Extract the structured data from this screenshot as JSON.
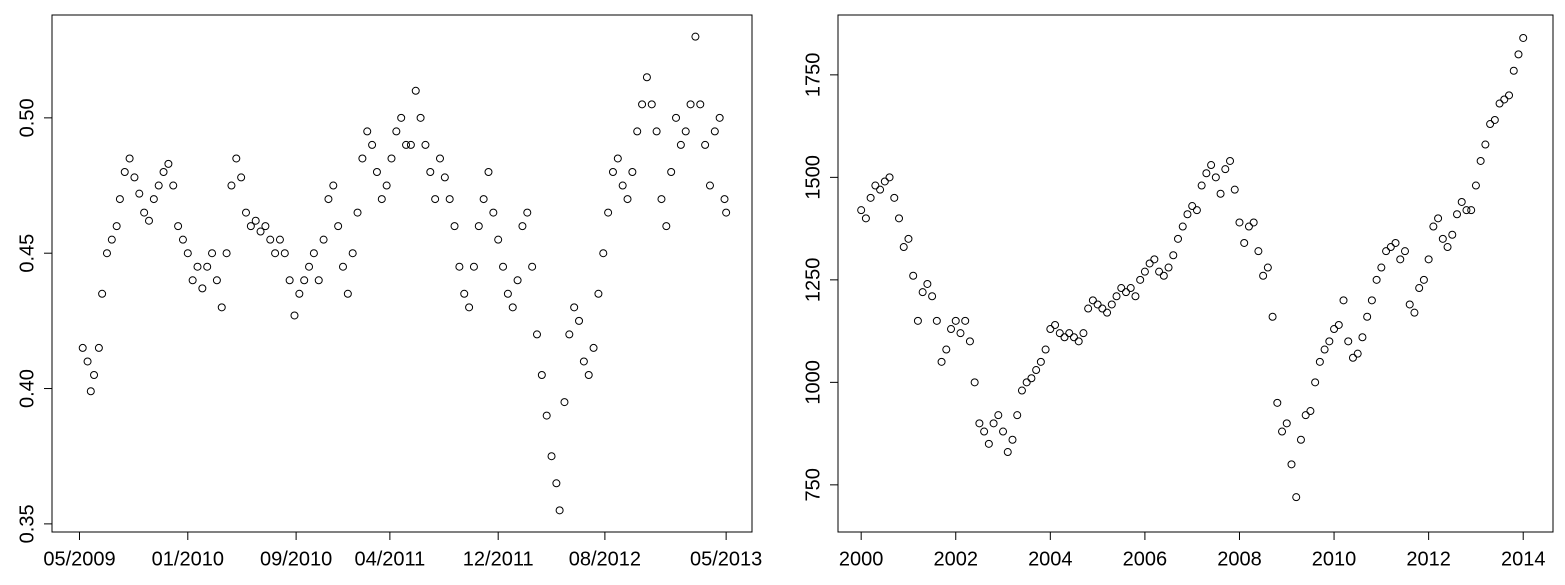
{
  "chart_data": [
    {
      "type": "scatter",
      "color": "#000000",
      "xlim": [
        2009.16,
        2013.49
      ],
      "ylim": [
        0.347,
        0.538
      ],
      "xticks": [
        {
          "value": 2009.33,
          "label": "05/2009"
        },
        {
          "value": 2010.0,
          "label": "01/2010"
        },
        {
          "value": 2010.67,
          "label": "09/2010"
        },
        {
          "value": 2011.25,
          "label": "04/2011"
        },
        {
          "value": 2011.92,
          "label": "12/2011"
        },
        {
          "value": 2012.58,
          "label": "08/2012"
        },
        {
          "value": 2013.33,
          "label": "05/2013"
        }
      ],
      "yticks": [
        {
          "value": 0.35,
          "label": "0.35"
        },
        {
          "value": 0.4,
          "label": "0.40"
        },
        {
          "value": 0.45,
          "label": "0.45"
        },
        {
          "value": 0.5,
          "label": "0.50"
        }
      ],
      "x": [
        2009.35,
        2009.38,
        2009.4,
        2009.42,
        2009.45,
        2009.47,
        2009.5,
        2009.53,
        2009.56,
        2009.58,
        2009.61,
        2009.64,
        2009.67,
        2009.7,
        2009.73,
        2009.76,
        2009.79,
        2009.82,
        2009.85,
        2009.88,
        2009.91,
        2009.94,
        2009.97,
        2010.0,
        2010.03,
        2010.06,
        2010.09,
        2010.12,
        2010.15,
        2010.18,
        2010.21,
        2010.24,
        2010.27,
        2010.3,
        2010.33,
        2010.36,
        2010.39,
        2010.42,
        2010.45,
        2010.48,
        2010.51,
        2010.54,
        2010.57,
        2010.6,
        2010.63,
        2010.66,
        2010.69,
        2010.72,
        2010.75,
        2010.78,
        2010.81,
        2010.84,
        2010.87,
        2010.9,
        2010.93,
        2010.96,
        2010.99,
        2011.02,
        2011.05,
        2011.08,
        2011.11,
        2011.14,
        2011.17,
        2011.2,
        2011.23,
        2011.26,
        2011.29,
        2011.32,
        2011.35,
        2011.38,
        2011.41,
        2011.44,
        2011.47,
        2011.5,
        2011.53,
        2011.56,
        2011.59,
        2011.62,
        2011.65,
        2011.68,
        2011.71,
        2011.74,
        2011.77,
        2011.8,
        2011.83,
        2011.86,
        2011.89,
        2011.92,
        2011.95,
        2011.98,
        2012.01,
        2012.04,
        2012.07,
        2012.1,
        2012.13,
        2012.16,
        2012.19,
        2012.22,
        2012.25,
        2012.28,
        2012.3,
        2012.33,
        2012.36,
        2012.39,
        2012.42,
        2012.45,
        2012.48,
        2012.51,
        2012.54,
        2012.57,
        2012.6,
        2012.63,
        2012.66,
        2012.69,
        2012.72,
        2012.75,
        2012.78,
        2012.81,
        2012.84,
        2012.87,
        2012.9,
        2012.93,
        2012.96,
        2012.99,
        2013.02,
        2013.05,
        2013.08,
        2013.11,
        2013.14,
        2013.17,
        2013.2,
        2013.23,
        2013.26,
        2013.29,
        2013.32,
        2013.33
      ],
      "values": [
        0.415,
        0.41,
        0.399,
        0.405,
        0.415,
        0.435,
        0.45,
        0.455,
        0.46,
        0.47,
        0.48,
        0.485,
        0.478,
        0.472,
        0.465,
        0.462,
        0.47,
        0.475,
        0.48,
        0.483,
        0.475,
        0.46,
        0.455,
        0.45,
        0.44,
        0.445,
        0.437,
        0.445,
        0.45,
        0.44,
        0.43,
        0.45,
        0.475,
        0.485,
        0.478,
        0.465,
        0.46,
        0.462,
        0.458,
        0.46,
        0.455,
        0.45,
        0.455,
        0.45,
        0.44,
        0.427,
        0.435,
        0.44,
        0.445,
        0.45,
        0.44,
        0.455,
        0.47,
        0.475,
        0.46,
        0.445,
        0.435,
        0.45,
        0.465,
        0.485,
        0.495,
        0.49,
        0.48,
        0.47,
        0.475,
        0.485,
        0.495,
        0.5,
        0.49,
        0.49,
        0.51,
        0.5,
        0.49,
        0.48,
        0.47,
        0.485,
        0.478,
        0.47,
        0.46,
        0.445,
        0.435,
        0.43,
        0.445,
        0.46,
        0.47,
        0.48,
        0.465,
        0.455,
        0.445,
        0.435,
        0.43,
        0.44,
        0.46,
        0.465,
        0.445,
        0.42,
        0.405,
        0.39,
        0.375,
        0.365,
        0.355,
        0.395,
        0.42,
        0.43,
        0.425,
        0.41,
        0.405,
        0.415,
        0.435,
        0.45,
        0.465,
        0.48,
        0.485,
        0.475,
        0.47,
        0.48,
        0.495,
        0.505,
        0.515,
        0.505,
        0.495,
        0.47,
        0.46,
        0.48,
        0.5,
        0.49,
        0.495,
        0.505,
        0.53,
        0.505,
        0.49,
        0.475,
        0.495,
        0.5,
        0.47,
        0.465
      ]
    },
    {
      "type": "scatter",
      "color": "#000000",
      "xlim": [
        1999.51,
        2014.63
      ],
      "ylim": [
        635,
        1896
      ],
      "xticks": [
        2000,
        2002,
        2004,
        2006,
        2008,
        2010,
        2012,
        2014
      ],
      "yticks": [
        750,
        1000,
        1250,
        1500,
        1750
      ],
      "x": [
        2000.0,
        2000.1,
        2000.2,
        2000.3,
        2000.4,
        2000.5,
        2000.6,
        2000.7,
        2000.8,
        2000.9,
        2001.0,
        2001.1,
        2001.2,
        2001.3,
        2001.4,
        2001.5,
        2001.6,
        2001.7,
        2001.8,
        2001.9,
        2002.0,
        2002.1,
        2002.2,
        2002.3,
        2002.4,
        2002.5,
        2002.6,
        2002.7,
        2002.8,
        2002.9,
        2003.0,
        2003.1,
        2003.2,
        2003.3,
        2003.4,
        2003.5,
        2003.6,
        2003.7,
        2003.8,
        2003.9,
        2004.0,
        2004.1,
        2004.2,
        2004.3,
        2004.4,
        2004.5,
        2004.6,
        2004.7,
        2004.8,
        2004.9,
        2005.0,
        2005.1,
        2005.2,
        2005.3,
        2005.4,
        2005.5,
        2005.6,
        2005.7,
        2005.8,
        2005.9,
        2006.0,
        2006.1,
        2006.2,
        2006.3,
        2006.4,
        2006.5,
        2006.6,
        2006.7,
        2006.8,
        2006.9,
        2007.0,
        2007.1,
        2007.2,
        2007.3,
        2007.4,
        2007.5,
        2007.6,
        2007.7,
        2007.8,
        2007.9,
        2008.0,
        2008.1,
        2008.2,
        2008.3,
        2008.4,
        2008.5,
        2008.6,
        2008.7,
        2008.8,
        2008.9,
        2009.0,
        2009.1,
        2009.2,
        2009.3,
        2009.4,
        2009.5,
        2009.6,
        2009.7,
        2009.8,
        2009.9,
        2010.0,
        2010.1,
        2010.2,
        2010.3,
        2010.4,
        2010.5,
        2010.6,
        2010.7,
        2010.8,
        2010.9,
        2011.0,
        2011.1,
        2011.2,
        2011.3,
        2011.4,
        2011.5,
        2011.6,
        2011.7,
        2011.8,
        2011.9,
        2012.0,
        2012.1,
        2012.2,
        2012.3,
        2012.4,
        2012.5,
        2012.6,
        2012.7,
        2012.8,
        2012.9,
        2013.0,
        2013.1,
        2013.2,
        2013.3,
        2013.4,
        2013.5,
        2013.6,
        2013.7,
        2013.8,
        2013.9,
        2014.0
      ],
      "values": [
        1420,
        1400,
        1450,
        1480,
        1470,
        1490,
        1500,
        1450,
        1400,
        1330,
        1350,
        1260,
        1150,
        1220,
        1240,
        1210,
        1150,
        1050,
        1080,
        1130,
        1150,
        1120,
        1150,
        1100,
        1000,
        900,
        880,
        850,
        900,
        920,
        880,
        830,
        860,
        920,
        980,
        1000,
        1010,
        1030,
        1050,
        1080,
        1130,
        1140,
        1120,
        1110,
        1120,
        1110,
        1100,
        1120,
        1180,
        1200,
        1190,
        1180,
        1170,
        1190,
        1210,
        1230,
        1220,
        1230,
        1210,
        1250,
        1270,
        1290,
        1300,
        1270,
        1260,
        1280,
        1310,
        1350,
        1380,
        1410,
        1430,
        1420,
        1480,
        1510,
        1530,
        1500,
        1460,
        1520,
        1540,
        1470,
        1390,
        1340,
        1380,
        1390,
        1320,
        1260,
        1280,
        1160,
        950,
        880,
        900,
        800,
        720,
        860,
        920,
        930,
        1000,
        1050,
        1080,
        1100,
        1130,
        1140,
        1200,
        1100,
        1060,
        1070,
        1110,
        1160,
        1200,
        1250,
        1280,
        1320,
        1330,
        1340,
        1300,
        1320,
        1190,
        1170,
        1230,
        1250,
        1300,
        1380,
        1400,
        1350,
        1330,
        1360,
        1410,
        1440,
        1420,
        1420,
        1480,
        1540,
        1580,
        1630,
        1640,
        1680,
        1690,
        1700,
        1760,
        1800,
        1840
      ]
    }
  ]
}
